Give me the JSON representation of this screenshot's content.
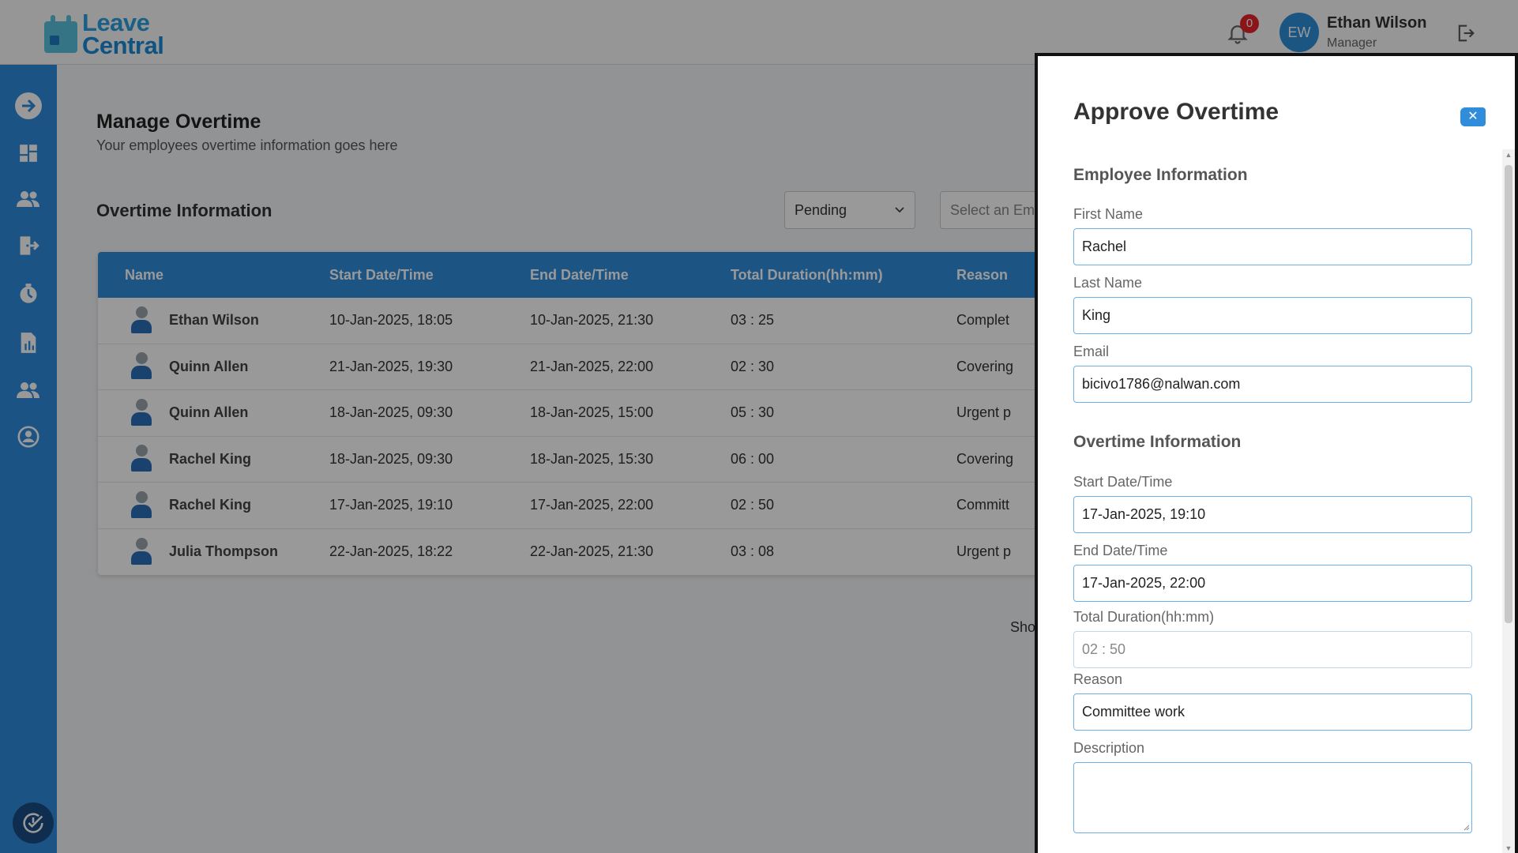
{
  "app": {
    "logo_line1": "Leave",
    "logo_line2": "Central"
  },
  "header": {
    "notification_count": "0",
    "avatar_initials": "EW",
    "user_name": "Ethan Wilson",
    "user_role": "Manager"
  },
  "sidebar": {
    "items": [
      "arrow-right-icon",
      "dashboard-icon",
      "team-icon",
      "leave-exit-icon",
      "overtime-icon",
      "report-icon",
      "employees-icon",
      "profile-icon"
    ],
    "bottom_icon": "clock-check-icon"
  },
  "page": {
    "title": "Manage Overtime",
    "subtitle": "Your employees overtime information goes here",
    "section_title": "Overtime Information",
    "status_filter": "Pending",
    "employee_placeholder": "Select an Employee",
    "show_text": "Show"
  },
  "table": {
    "columns": [
      "Name",
      "Start Date/Time",
      "End Date/Time",
      "Total Duration(hh:mm)",
      "Reason"
    ],
    "rows": [
      {
        "name": "Ethan Wilson",
        "start": "10-Jan-2025, 18:05",
        "end": "10-Jan-2025, 21:30",
        "duration": "03 : 25",
        "reason": "Complet"
      },
      {
        "name": "Quinn Allen",
        "start": "21-Jan-2025, 19:30",
        "end": "21-Jan-2025, 22:00",
        "duration": "02 : 30",
        "reason": "Covering"
      },
      {
        "name": "Quinn Allen",
        "start": "18-Jan-2025, 09:30",
        "end": "18-Jan-2025, 15:00",
        "duration": "05 : 30",
        "reason": "Urgent p"
      },
      {
        "name": "Rachel King",
        "start": "18-Jan-2025, 09:30",
        "end": "18-Jan-2025, 15:30",
        "duration": "06 : 00",
        "reason": "Covering"
      },
      {
        "name": "Rachel King",
        "start": "17-Jan-2025, 19:10",
        "end": "17-Jan-2025, 22:00",
        "duration": "02 : 50",
        "reason": "Committ"
      },
      {
        "name": "Julia Thompson",
        "start": "22-Jan-2025, 18:22",
        "end": "22-Jan-2025, 21:30",
        "duration": "03 : 08",
        "reason": "Urgent p"
      }
    ]
  },
  "panel": {
    "title": "Approve Overtime",
    "close_label": "✕",
    "employee_section": "Employee Information",
    "first_name_label": "First Name",
    "first_name": "Rachel",
    "last_name_label": "Last Name",
    "last_name": "King",
    "email_label": "Email",
    "email": "bicivo1786@nalwan.com",
    "overtime_section": "Overtime Information",
    "start_label": "Start Date/Time",
    "start": "17-Jan-2025, 19:10",
    "end_label": "End Date/Time",
    "end": "17-Jan-2025, 22:00",
    "duration_label": "Total Duration(hh:mm)",
    "duration": "02 : 50",
    "reason_label": "Reason",
    "reason": "Committee work",
    "description_label": "Description",
    "description": ""
  },
  "colors": {
    "primary": "#2f8ddc",
    "sidebar": "#2e8ddc",
    "badge": "#e8262c"
  }
}
